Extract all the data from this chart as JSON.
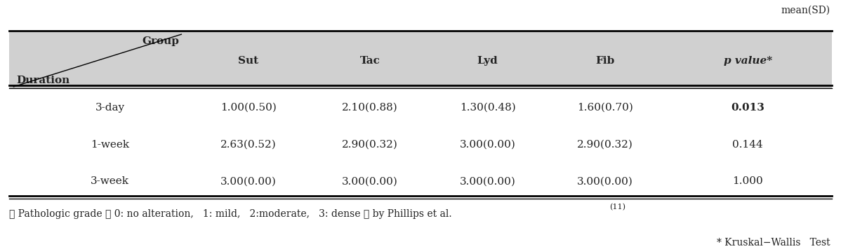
{
  "title_top_right": "mean(SD)",
  "header_group": "Group",
  "header_duration": "Duration",
  "col_headers": [
    "Sut",
    "Tac",
    "Lyd",
    "Fib",
    "p value*"
  ],
  "rows": [
    {
      "label": "3-day",
      "values": [
        "1.00(0.50)",
        "2.10(0.88)",
        "1.30(0.48)",
        "1.60(0.70)",
        "0.013"
      ]
    },
    {
      "label": "1-week",
      "values": [
        "2.63(0.52)",
        "2.90(0.32)",
        "3.00(0.00)",
        "2.90(0.32)",
        "0.144"
      ]
    },
    {
      "label": "3-week",
      "values": [
        "3.00(0.00)",
        "3.00(0.00)",
        "3.00(0.00)",
        "3.00(0.00)",
        "1.000"
      ]
    }
  ],
  "bold_pvalue_row": 0,
  "footnote1": "※ Pathologic grade （ 0: no alteration,   1: mild,   2:moderate,   3: dense ） by Phillips et al.",
  "footnote1_superscript": "(11)",
  "footnote2": "* Kruskal−Wallis   Test",
  "header_bg": "#d0d0d0",
  "body_bg": "#ffffff",
  "text_color": "#222222",
  "font_size": 11,
  "header_font_size": 11
}
